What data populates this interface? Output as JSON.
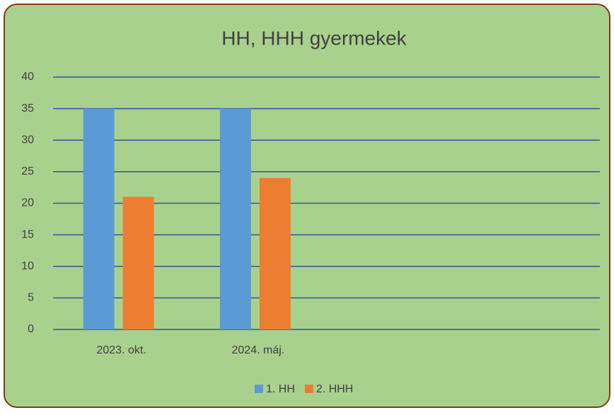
{
  "chart_data": {
    "type": "bar",
    "title": "HH, HHH gyermekek",
    "categories": [
      "2023. okt.",
      "2024. máj.",
      null,
      null
    ],
    "series": [
      {
        "name": "1. HH",
        "color": "#5b9bd5",
        "values": [
          35,
          35,
          null,
          null
        ]
      },
      {
        "name": "2. HHH",
        "color": "#ed7d31",
        "values": [
          21,
          24,
          null,
          null
        ]
      }
    ],
    "ylim": [
      0,
      40
    ],
    "yticks": [
      0,
      5,
      10,
      15,
      20,
      25,
      30,
      35,
      40
    ],
    "grid": true,
    "legend": "bottom"
  }
}
